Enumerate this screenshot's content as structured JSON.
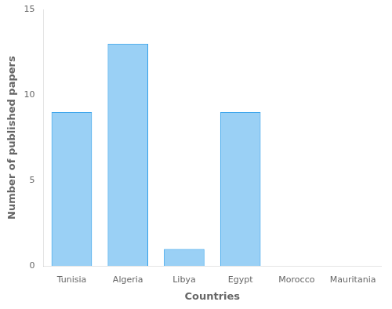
{
  "chart_data": {
    "type": "bar",
    "categories": [
      "Tunisia",
      "Algeria",
      "Libya",
      "Egypt",
      "Morocco",
      "Mauritania"
    ],
    "values": [
      9,
      13,
      1,
      9,
      0,
      0
    ],
    "xlabel": "Countries",
    "ylabel": "Number of published papers",
    "ylim": [
      0,
      15
    ],
    "yticks": [
      0,
      5,
      10,
      15
    ],
    "grid": false
  }
}
